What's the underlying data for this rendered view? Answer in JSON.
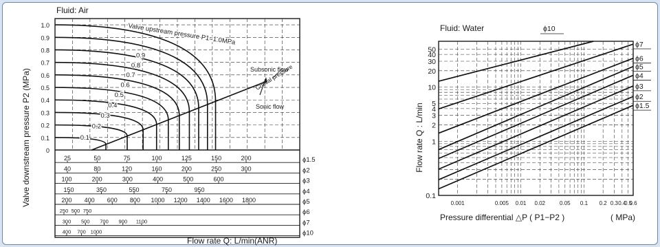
{
  "chart_data": [
    {
      "type": "line",
      "fluid_label": "Fluid: Air",
      "ylabel": "Valve downstream pressure  P2   (MPa)",
      "xlabel": "Flow rate  Q: L/min(ANR)",
      "y_ticks": [
        "1.0",
        "0.9",
        "0.8",
        "0.7",
        "0.6",
        "0.5",
        "0.4",
        "0.3",
        "0.2",
        "0.1",
        "0"
      ],
      "ylim": [
        0,
        1.05
      ],
      "grid": true,
      "upstream_curves": [
        {
          "p1": 0.1,
          "label": "0.1",
          "end_x": 0.208
        },
        {
          "p1": 0.2,
          "label": "0.2",
          "end_x": 0.295
        },
        {
          "p1": 0.3,
          "label": "0.3",
          "end_x": 0.36
        },
        {
          "p1": 0.4,
          "label": "0.4",
          "end_x": 0.415
        },
        {
          "p1": 0.5,
          "label": "0.5",
          "end_x": 0.463
        },
        {
          "p1": 0.6,
          "label": "0.6",
          "end_x": 0.508
        },
        {
          "p1": 0.7,
          "label": "0.7",
          "end_x": 0.549
        },
        {
          "p1": 0.8,
          "label": "0.8",
          "end_x": 0.587
        },
        {
          "p1": 0.9,
          "label": "0.9",
          "end_x": 0.623
        },
        {
          "p1": 1.0,
          "label": "Valve upstream pressure  P1=1.0MPa",
          "end_x": 0.656
        }
      ],
      "annotations": [
        "Subsonic flow",
        "Critical pressure",
        "Sonic flow"
      ],
      "flow_scales": [
        {
          "label": "ϕ1.5",
          "values": [
            "25",
            "50",
            "75",
            "100",
            "125",
            "150",
            "200"
          ]
        },
        {
          "label": "ϕ2",
          "values": [
            "40",
            "80",
            "120",
            "160",
            "200",
            "250",
            "300"
          ]
        },
        {
          "label": "ϕ3",
          "values": [
            "100",
            "200",
            "300",
            "400",
            "500",
            "600"
          ]
        },
        {
          "label": "ϕ4",
          "values": [
            "150",
            "350",
            "550",
            "750",
            "950"
          ]
        },
        {
          "label": "ϕ5",
          "values": [
            "200",
            "400",
            "600",
            "800",
            "1000",
            "1200",
            "1400",
            "1600",
            "1800"
          ]
        },
        {
          "label": "ϕ6",
          "values": [
            "250",
            "500",
            "750"
          ]
        },
        {
          "label": "ϕ7",
          "values": [
            "300",
            "500",
            "700",
            "900",
            "1100"
          ]
        },
        {
          "label": "ϕ10",
          "values": [
            "400",
            "700",
            "1000"
          ]
        }
      ]
    },
    {
      "type": "line",
      "fluid_label": "Fluid: Water",
      "xlabel": "Pressure differential  △P ( P1−P2 )",
      "xunit": "( MPa)",
      "ylabel": "Flow rate Q : L/min",
      "x_scale": "log",
      "y_scale": "log",
      "xlim": [
        0.0005,
        0.6
      ],
      "ylim": [
        0.1,
        70
      ],
      "x_ticks": [
        "0.001",
        "0.005",
        "0.01",
        "0.02",
        "0.05",
        "0.1",
        "0.2",
        "0.3",
        "0.4",
        "0.5",
        "0.6"
      ],
      "y_ticks": [
        "50",
        "40",
        "30",
        "20",
        "10",
        "5",
        "4",
        "3",
        "2",
        "1",
        "0.1"
      ],
      "grid": true,
      "series": [
        {
          "name": "ϕ10",
          "x": [
            0.0005,
            0.141
          ],
          "y": [
            12.8,
            70
          ]
        },
        {
          "name": "ϕ7",
          "x": [
            0.0005,
            0.6
          ],
          "y": [
            3.95,
            62
          ]
        },
        {
          "name": "ϕ6",
          "x": [
            0.0005,
            0.6
          ],
          "y": [
            1.41,
            34
          ]
        },
        {
          "name": "ϕ5",
          "x": [
            0.0005,
            0.6
          ],
          "y": [
            0.7,
            24
          ]
        },
        {
          "name": "ϕ4",
          "x": [
            0.0005,
            0.6
          ],
          "y": [
            0.48,
            16.5
          ]
        },
        {
          "name": "ϕ3",
          "x": [
            0.0005,
            0.6
          ],
          "y": [
            0.305,
            10.5
          ]
        },
        {
          "name": "ϕ2",
          "x": [
            0.0005,
            0.6
          ],
          "y": [
            0.195,
            6.7
          ]
        },
        {
          "name": "ϕ1.5",
          "x": [
            0.0005,
            0.6
          ],
          "y": [
            0.132,
            4.6
          ]
        }
      ]
    }
  ]
}
